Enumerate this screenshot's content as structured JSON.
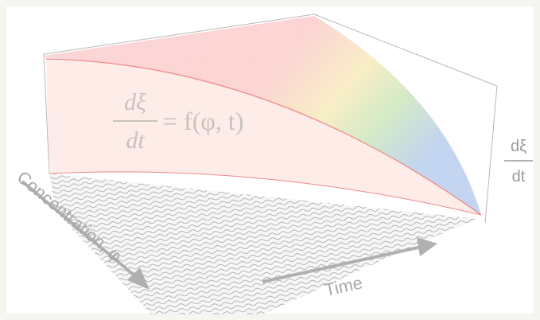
{
  "equation": {
    "numerator": "dξ",
    "denominator": "dt",
    "rhs": "= f(φ, t)"
  },
  "axes": {
    "time": "Time",
    "concentration": "Concentration, φ",
    "rate_numerator": "dξ",
    "rate_denominator": "dt"
  }
}
